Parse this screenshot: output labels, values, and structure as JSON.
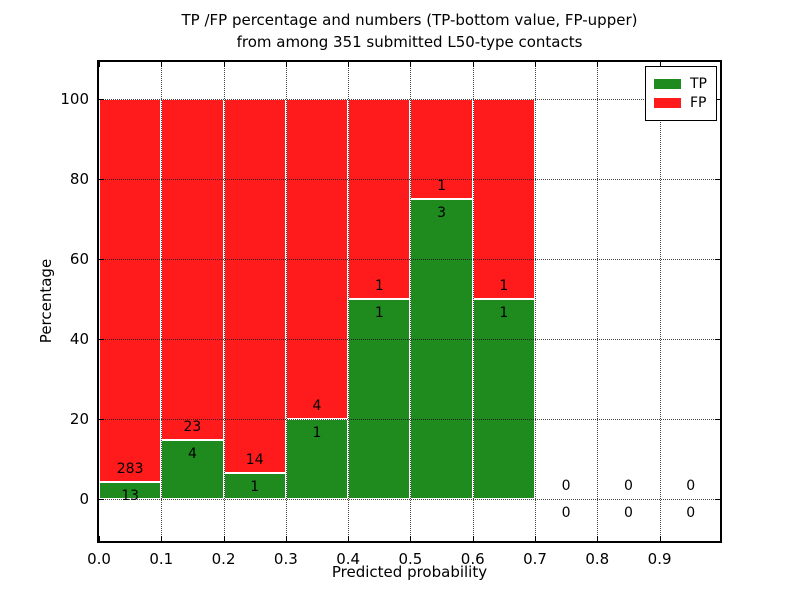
{
  "figure": {
    "title_line1": "TP /FP percentage and numbers (TP-bottom value, FP-upper)",
    "title_line2": "from among 351 submitted L50-type contacts"
  },
  "chart_data": {
    "type": "bar",
    "stacked": true,
    "title": "TP /FP percentage and numbers (TP-bottom value, FP-upper)\nfrom among 351 submitted L50-type contacts",
    "xlabel": "Predicted probability",
    "ylabel": "Percentage",
    "xlim": [
      0.0,
      0.997
    ],
    "ylim": [
      -10.4,
      109.2
    ],
    "grid": true,
    "grid_style": "dotted",
    "bin_width": 0.1,
    "x_tick_values": [
      0.0,
      0.1,
      0.2,
      0.3,
      0.4,
      0.5,
      0.6,
      0.7,
      0.8,
      0.9
    ],
    "x_tick_labels": [
      "0.0",
      "0.1",
      "0.2",
      "0.3",
      "0.4",
      "0.5",
      "0.6",
      "0.7",
      "0.8",
      "0.9"
    ],
    "y_tick_values": [
      0,
      20,
      40,
      60,
      80,
      100
    ],
    "y_tick_labels": [
      "0",
      "20",
      "40",
      "60",
      "80",
      "100"
    ],
    "total_contacts": 351,
    "bins": [
      {
        "start": 0.0,
        "tp": 13,
        "fp": 283
      },
      {
        "start": 0.1,
        "tp": 4,
        "fp": 23
      },
      {
        "start": 0.2,
        "tp": 1,
        "fp": 14
      },
      {
        "start": 0.3,
        "tp": 1,
        "fp": 4
      },
      {
        "start": 0.4,
        "tp": 1,
        "fp": 1
      },
      {
        "start": 0.5,
        "tp": 3,
        "fp": 1
      },
      {
        "start": 0.6,
        "tp": 1,
        "fp": 1
      },
      {
        "start": 0.7,
        "tp": 0,
        "fp": 0
      },
      {
        "start": 0.8,
        "tp": 0,
        "fp": 0
      },
      {
        "start": 0.9,
        "tp": 0,
        "fp": 0
      }
    ],
    "series": [
      {
        "name": "TP",
        "color": "#1f8b1f",
        "values": [
          13,
          4,
          1,
          1,
          1,
          3,
          1,
          0,
          0,
          0
        ]
      },
      {
        "name": "FP",
        "color": "#ff1b1b",
        "values": [
          283,
          23,
          14,
          4,
          1,
          1,
          1,
          0,
          0,
          0
        ]
      }
    ],
    "legend": {
      "position": "upper right",
      "entries": [
        {
          "label": "TP",
          "color": "#1f8b1f"
        },
        {
          "label": "FP",
          "color": "#ff1b1b"
        }
      ]
    }
  }
}
